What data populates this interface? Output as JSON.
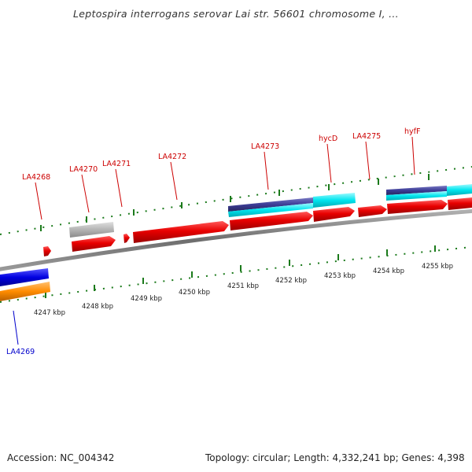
{
  "title": "Leptospira interrogans serovar Lai str. 56601 chromosome I, ...",
  "footer": {
    "accession": "Accession: NC_004342",
    "summary": "Topology: circular; Length: 4,332,241 bp; Genes: 4,398"
  },
  "colors": {
    "backbone": "#8c8c8c",
    "cds_forward": "#e80000",
    "cds_reverse_blue": "#0000e0",
    "cds_reverse_orange": "#ff8c00",
    "cyan": "#00e5ee",
    "navy": "#3c3c96",
    "grey": "#b4b4b4",
    "tick": "#1b7a1b",
    "label_forward": "#cc0000",
    "label_reverse": "#0000cc"
  },
  "scale": {
    "ticks": [
      {
        "label": "4247 kbp"
      },
      {
        "label": "4248 kbp"
      },
      {
        "label": "4249 kbp"
      },
      {
        "label": "4250 kbp"
      },
      {
        "label": "4251 kbp"
      },
      {
        "label": "4252 kbp"
      },
      {
        "label": "4253 kbp"
      },
      {
        "label": "4254 kbp"
      },
      {
        "label": "4255 kbp"
      }
    ]
  },
  "genes": [
    {
      "label": "LA4268",
      "strand": "forward"
    },
    {
      "label": "LA4269",
      "strand": "reverse"
    },
    {
      "label": "LA4270",
      "strand": "forward"
    },
    {
      "label": "LA4271",
      "strand": "forward"
    },
    {
      "label": "LA4272",
      "strand": "forward"
    },
    {
      "label": "LA4273",
      "strand": "forward"
    },
    {
      "label": "hycD",
      "strand": "forward"
    },
    {
      "label": "LA4275",
      "strand": "forward"
    },
    {
      "label": "hyfF",
      "strand": "forward"
    }
  ]
}
